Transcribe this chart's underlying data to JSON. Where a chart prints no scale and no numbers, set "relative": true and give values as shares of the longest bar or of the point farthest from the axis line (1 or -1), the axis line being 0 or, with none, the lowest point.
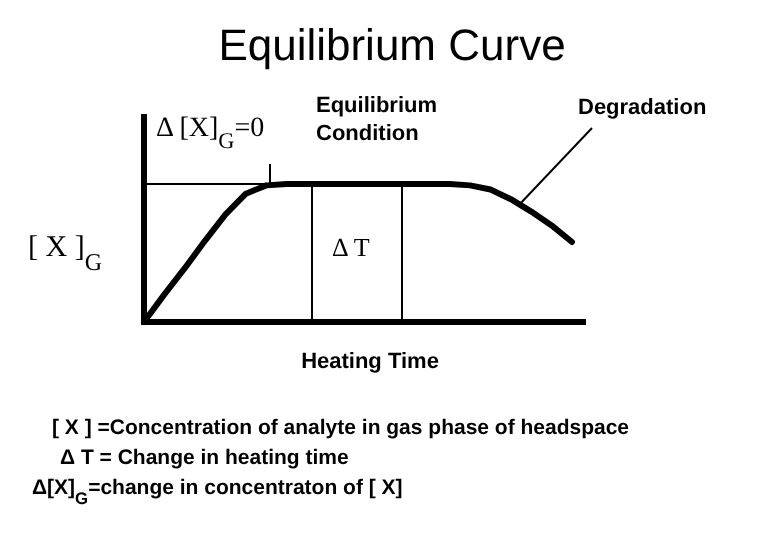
{
  "chart_data": {
    "type": "line",
    "title": "Equilibrium Curve",
    "xlabel": "Heating Time",
    "ylabel": "[ X ]$_{G}$",
    "relative": true,
    "color": "#000000",
    "categories": [
      null,
      null,
      null,
      null,
      null,
      null,
      null,
      null,
      null,
      null,
      null,
      null,
      null,
      null,
      null,
      null,
      null,
      null,
      null,
      null,
      null,
      null
    ],
    "values": [
      0,
      0.2,
      0.39,
      0.59,
      0.78,
      0.93,
      0.99,
      1,
      1,
      1,
      1,
      1,
      1,
      1,
      1,
      1,
      0.99,
      0.96,
      0.89,
      0.8,
      0.7,
      0.58
    ],
    "ref_lines": [
      {
        "axis": "y",
        "value": 1
      }
    ],
    "annotations": [
      "Δ [X]$_{G}$=0",
      "Equilibrium\nCondition",
      "Degradation",
      "Δ T",
      "[ X ] =Concentration of analyte in gas phase of headspace",
      "Δ T = Change in heating time",
      "Δ[X]$_{G}$=change in concentraton of [ X]"
    ]
  }
}
